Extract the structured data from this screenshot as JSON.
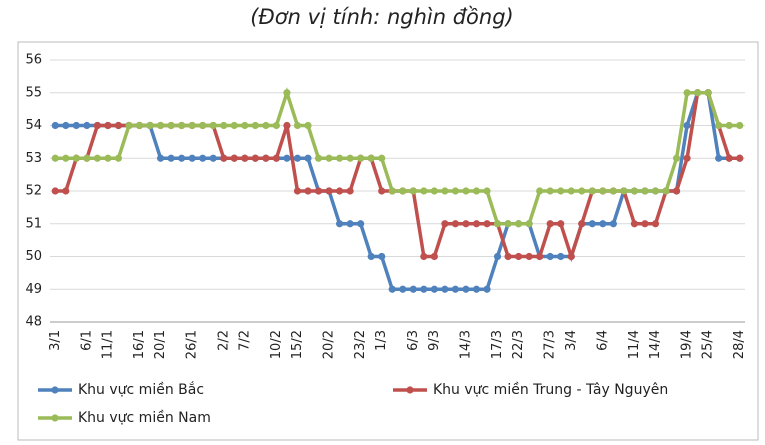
{
  "chart_data": {
    "type": "line",
    "title": "(Đơn vị tính: nghìn đồng)",
    "categories": [
      "3/1",
      null,
      null,
      "6/1",
      null,
      "11/1",
      null,
      null,
      "16/1",
      null,
      "20/1",
      null,
      null,
      "26/1",
      null,
      null,
      "2/2",
      null,
      "7/2",
      null,
      null,
      "10/2",
      null,
      "15/2",
      null,
      null,
      "20/2",
      null,
      null,
      "23/2",
      null,
      "1/3",
      null,
      null,
      "6/3",
      null,
      "9/3",
      null,
      null,
      "14/3",
      null,
      null,
      "17/3",
      null,
      "22/3",
      null,
      null,
      "27/3",
      null,
      "3/4",
      null,
      null,
      "6/4",
      null,
      null,
      "11/4",
      null,
      "14/4",
      null,
      null,
      "19/4",
      null,
      "25/4",
      null,
      null,
      "28/4"
    ],
    "series": [
      {
        "name": "Khu vực miền Bắc",
        "color": "#4f81bd",
        "values": [
          54,
          54,
          54,
          54,
          54,
          54,
          54,
          54,
          54,
          54,
          53,
          53,
          53,
          53,
          53,
          53,
          53,
          53,
          53,
          53,
          53,
          53,
          53,
          53,
          53,
          52,
          52,
          51,
          51,
          51,
          50,
          50,
          49,
          49,
          49,
          49,
          49,
          49,
          49,
          49,
          49,
          49,
          50,
          51,
          51,
          51,
          50,
          50,
          50,
          50,
          51,
          51,
          51,
          51,
          52,
          52,
          52,
          52,
          52,
          52,
          54,
          55,
          55,
          53,
          53,
          53
        ]
      },
      {
        "name": "Khu vực miền Trung - Tây Nguyên",
        "color": "#c0504d",
        "values": [
          52,
          52,
          53,
          53,
          54,
          54,
          54,
          54,
          54,
          54,
          54,
          54,
          54,
          54,
          54,
          54,
          53,
          53,
          53,
          53,
          53,
          53,
          54,
          52,
          52,
          52,
          52,
          52,
          52,
          53,
          53,
          52,
          52,
          52,
          52,
          50,
          50,
          51,
          51,
          51,
          51,
          51,
          51,
          50,
          50,
          50,
          50,
          51,
          51,
          50,
          51,
          52,
          52,
          52,
          52,
          51,
          51,
          51,
          52,
          52,
          53,
          55,
          55,
          54,
          53,
          53
        ]
      },
      {
        "name": "Khu vực miền Nam",
        "color": "#9bbb59",
        "values": [
          53,
          53,
          53,
          53,
          53,
          53,
          53,
          54,
          54,
          54,
          54,
          54,
          54,
          54,
          54,
          54,
          54,
          54,
          54,
          54,
          54,
          54,
          55,
          54,
          54,
          53,
          53,
          53,
          53,
          53,
          53,
          53,
          52,
          52,
          52,
          52,
          52,
          52,
          52,
          52,
          52,
          52,
          51,
          51,
          51,
          51,
          52,
          52,
          52,
          52,
          52,
          52,
          52,
          52,
          52,
          52,
          52,
          52,
          52,
          53,
          55,
          55,
          55,
          54,
          54,
          54
        ]
      }
    ],
    "ylim": [
      48,
      56
    ],
    "yticks": [
      48,
      49,
      50,
      51,
      52,
      53,
      54,
      55,
      56
    ],
    "grid": true
  }
}
